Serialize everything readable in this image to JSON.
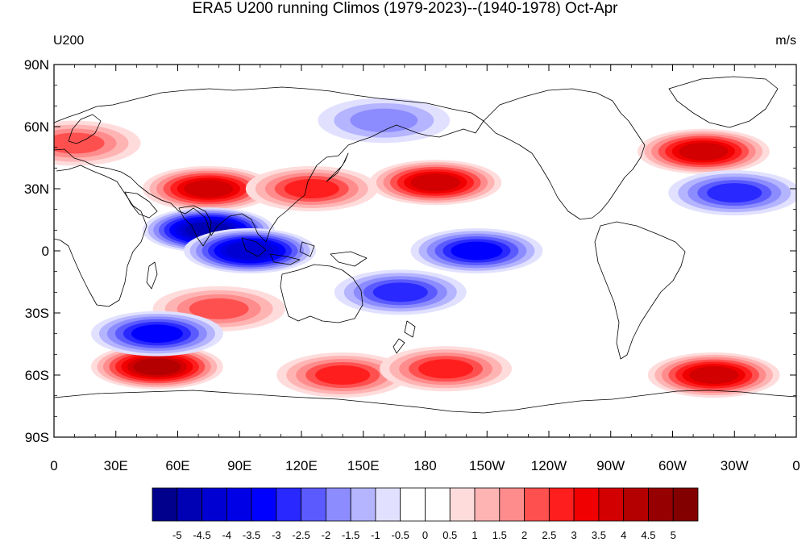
{
  "title": "ERA5 U200 running Climos (1979-2023)--(1940-1978) Oct-Apr",
  "left_label": "U200",
  "right_label": "m/s",
  "lat_ticks": [
    "90N",
    "60N",
    "30N",
    "0",
    "30S",
    "60S",
    "90S"
  ],
  "lon_ticks": [
    "0",
    "30E",
    "60E",
    "90E",
    "120E",
    "150E",
    "180",
    "150W",
    "120W",
    "90W",
    "60W",
    "30W",
    "0"
  ],
  "colorbar": {
    "labels": [
      "-5",
      "-4.5",
      "-4",
      "-3.5",
      "-3",
      "-2.5",
      "-2",
      "-1.5",
      "-1",
      "-0.5",
      "0",
      "0.5",
      "1",
      "1.5",
      "2",
      "2.5",
      "3",
      "3.5",
      "4",
      "4.5",
      "5"
    ],
    "colors": [
      "#00008c",
      "#0000b4",
      "#0000d2",
      "#0000e6",
      "#0000ff",
      "#2828ff",
      "#5a5aff",
      "#8c8cff",
      "#b4b4ff",
      "#e1e1ff",
      "#ffffff",
      "#ffffff",
      "#ffdcdc",
      "#ffb4b4",
      "#ff8c8c",
      "#ff5050",
      "#ff1e1e",
      "#f00000",
      "#d20000",
      "#b40000",
      "#960000",
      "#820000"
    ]
  },
  "chart_data": {
    "type": "heatmap",
    "projection": "cylindrical-equidistant",
    "variable": "U200",
    "units": "m/s",
    "lon_range": [
      0,
      360
    ],
    "lat_range": [
      -90,
      90
    ],
    "contour_interval": 0.5,
    "level_range": [
      -5,
      5
    ],
    "features": [
      {
        "sign": "positive",
        "lon": 75,
        "lat": 30,
        "peak": 3.5
      },
      {
        "sign": "positive",
        "lon": 125,
        "lat": 30,
        "peak": 2.5
      },
      {
        "sign": "positive",
        "lon": 185,
        "lat": 33,
        "peak": 3.5
      },
      {
        "sign": "positive",
        "lon": 315,
        "lat": 48,
        "peak": 3.5
      },
      {
        "sign": "positive",
        "lon": 10,
        "lat": 52,
        "peak": 2.0
      },
      {
        "sign": "positive",
        "lon": 50,
        "lat": -56,
        "peak": 4.0
      },
      {
        "sign": "positive",
        "lon": 140,
        "lat": -60,
        "peak": 2.5
      },
      {
        "sign": "positive",
        "lon": 190,
        "lat": -57,
        "peak": 2.5
      },
      {
        "sign": "positive",
        "lon": 320,
        "lat": -60,
        "peak": 3.5
      },
      {
        "sign": "positive",
        "lon": 80,
        "lat": -28,
        "peak": 2.0
      },
      {
        "sign": "negative",
        "lon": 75,
        "lat": 10,
        "peak": -4.5
      },
      {
        "sign": "negative",
        "lon": 95,
        "lat": 0,
        "peak": -4.0
      },
      {
        "sign": "negative",
        "lon": 205,
        "lat": 0,
        "peak": -3.0
      },
      {
        "sign": "negative",
        "lon": 168,
        "lat": -20,
        "peak": -2.5
      },
      {
        "sign": "negative",
        "lon": 330,
        "lat": 28,
        "peak": -2.5
      },
      {
        "sign": "negative",
        "lon": 50,
        "lat": -40,
        "peak": -3.0
      },
      {
        "sign": "negative",
        "lon": 160,
        "lat": 63,
        "peak": -1.5
      }
    ]
  }
}
